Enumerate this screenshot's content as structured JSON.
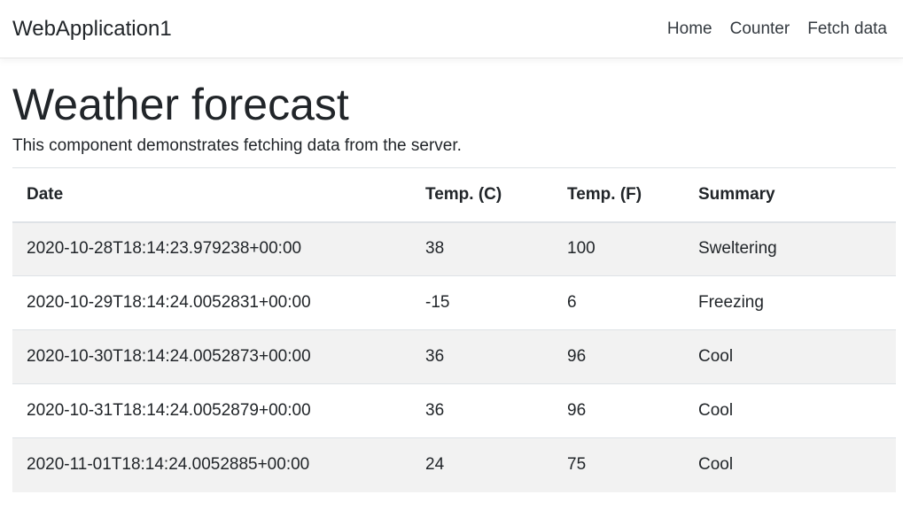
{
  "navbar": {
    "brand": "WebApplication1",
    "links": [
      {
        "label": "Home"
      },
      {
        "label": "Counter"
      },
      {
        "label": "Fetch data"
      }
    ]
  },
  "page": {
    "title": "Weather forecast",
    "description": "This component demonstrates fetching data from the server."
  },
  "table": {
    "headers": {
      "date": "Date",
      "temp_c": "Temp. (C)",
      "temp_f": "Temp. (F)",
      "summary": "Summary"
    },
    "rows": [
      {
        "date": "2020-10-28T18:14:23.979238+00:00",
        "temp_c": "38",
        "temp_f": "100",
        "summary": "Sweltering"
      },
      {
        "date": "2020-10-29T18:14:24.0052831+00:00",
        "temp_c": "-15",
        "temp_f": "6",
        "summary": "Freezing"
      },
      {
        "date": "2020-10-30T18:14:24.0052873+00:00",
        "temp_c": "36",
        "temp_f": "96",
        "summary": "Cool"
      },
      {
        "date": "2020-10-31T18:14:24.0052879+00:00",
        "temp_c": "36",
        "temp_f": "96",
        "summary": "Cool"
      },
      {
        "date": "2020-11-01T18:14:24.0052885+00:00",
        "temp_c": "24",
        "temp_f": "75",
        "summary": "Cool"
      }
    ]
  }
}
